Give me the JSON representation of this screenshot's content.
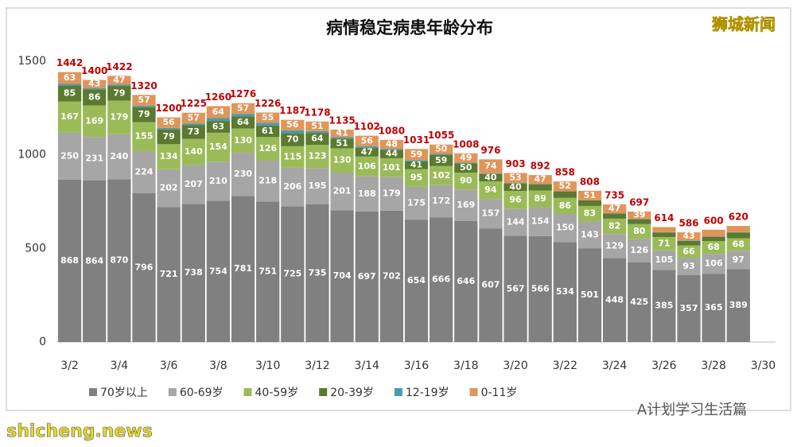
{
  "chart_data": {
    "type": "stacked-bar",
    "title": "病情稳定病患年龄分布",
    "brand": "狮城新闻",
    "watermark": "A计划学习生活篇",
    "site": "shicheng.news",
    "categories": [
      "3/2",
      null,
      "3/4",
      null,
      "3/6",
      null,
      "3/8",
      null,
      "3/10",
      null,
      "3/12",
      null,
      "3/14",
      null,
      "3/16",
      null,
      "3/18",
      null,
      "3/20",
      null,
      "3/22",
      null,
      "3/24",
      null,
      "3/26",
      null,
      "3/28",
      null,
      "3/30"
    ],
    "series": [
      {
        "name": "70岁以上",
        "color": "#808080",
        "values": [
          868,
          864,
          870,
          796,
          721,
          738,
          754,
          781,
          751,
          725,
          735,
          704,
          697,
          702,
          654,
          666,
          646,
          607,
          567,
          566,
          534,
          501,
          448,
          425,
          385,
          357,
          365,
          389,
          null
        ]
      },
      {
        "name": "60-69岁",
        "color": "#a6a6a6",
        "values": [
          250,
          231,
          240,
          224,
          202,
          207,
          210,
          230,
          218,
          206,
          195,
          201,
          188,
          179,
          175,
          172,
          169,
          157,
          144,
          154,
          150,
          143,
          129,
          126,
          105,
          93,
          106,
          97,
          null
        ]
      },
      {
        "name": "40-59岁",
        "color": "#9bbb59",
        "values": [
          167,
          169,
          179,
          155,
          134,
          140,
          154,
          130,
          126,
          115,
          123,
          130,
          106,
          101,
          95,
          102,
          90,
          94,
          96,
          89,
          86,
          83,
          82,
          80,
          71,
          66,
          68,
          68,
          null
        ]
      },
      {
        "name": "20-39岁",
        "color": "#5b7a30",
        "values": [
          85,
          86,
          79,
          79,
          79,
          73,
          63,
          64,
          61,
          70,
          64,
          51,
          47,
          44,
          41,
          59,
          50,
          40,
          40,
          34,
          35,
          30,
          28,
          25,
          24,
          24,
          22,
          31,
          null
        ]
      },
      {
        "name": "12-19岁",
        "color": "#4a9bb0",
        "values": [
          9,
          7,
          7,
          9,
          8,
          10,
          15,
          14,
          15,
          15,
          10,
          8,
          8,
          6,
          7,
          6,
          4,
          4,
          3,
          2,
          1,
          0,
          1,
          2,
          2,
          3,
          2,
          2,
          null
        ]
      },
      {
        "name": "0-11岁",
        "color": "#e0955a",
        "values": [
          63,
          43,
          47,
          57,
          56,
          57,
          64,
          57,
          55,
          56,
          51,
          41,
          56,
          48,
          59,
          50,
          49,
          74,
          53,
          47,
          52,
          51,
          47,
          39,
          27,
          43,
          37,
          33,
          null
        ]
      }
    ],
    "totals": [
      1442,
      1400,
      1422,
      1320,
      1200,
      1225,
      1260,
      1276,
      1226,
      1187,
      1178,
      1135,
      1102,
      1080,
      1031,
      1055,
      1008,
      976,
      903,
      892,
      858,
      808,
      735,
      697,
      614,
      586,
      600,
      620,
      null
    ],
    "ylim": [
      0,
      1500
    ],
    "yticks": [
      0,
      500,
      1000,
      1500
    ]
  }
}
